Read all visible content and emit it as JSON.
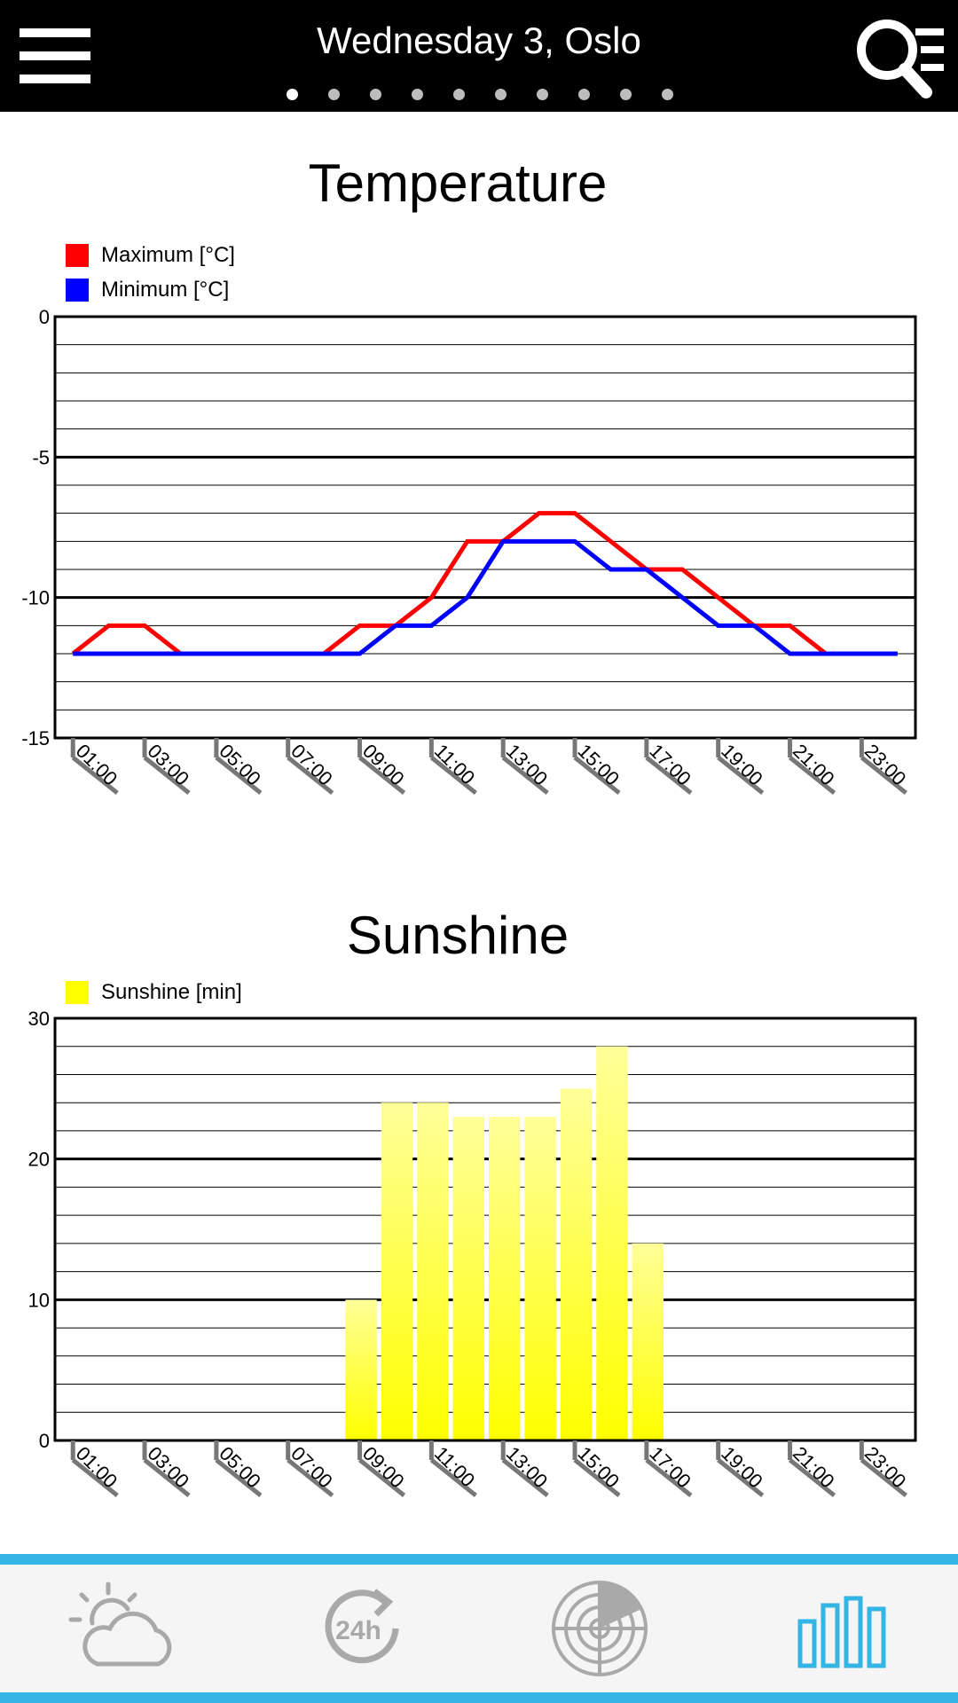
{
  "header": {
    "title": "Wednesday 3, Oslo",
    "page_count": 10,
    "active_page": 0
  },
  "charts": {
    "temperature": {
      "title": "Temperature",
      "legend": [
        {
          "label": "Maximum [°C]",
          "color": "#ff0000"
        },
        {
          "label": "Minimum [°C]",
          "color": "#0000ff"
        }
      ]
    },
    "sunshine": {
      "title": "Sunshine",
      "legend": [
        {
          "label": "Sunshine [min]",
          "color": "#ffff00"
        }
      ]
    }
  },
  "chart_data": [
    {
      "type": "line",
      "title": "Temperature",
      "x": [
        "01:00",
        "02:00",
        "03:00",
        "04:00",
        "05:00",
        "06:00",
        "07:00",
        "08:00",
        "09:00",
        "10:00",
        "11:00",
        "12:00",
        "13:00",
        "14:00",
        "15:00",
        "16:00",
        "17:00",
        "18:00",
        "19:00",
        "20:00",
        "21:00",
        "22:00",
        "23:00",
        "24:00"
      ],
      "x_tick_labels": [
        "01:00",
        "03:00",
        "05:00",
        "07:00",
        "09:00",
        "11:00",
        "13:00",
        "15:00",
        "17:00",
        "19:00",
        "21:00",
        "23:00"
      ],
      "series": [
        {
          "name": "Maximum [°C]",
          "color": "#ff0000",
          "values": [
            -12,
            -11,
            -11,
            -12,
            -12,
            -12,
            -12,
            -12,
            -11,
            -11,
            -10,
            -8,
            -8,
            -7,
            -7,
            -8,
            -9,
            -9,
            -10,
            -11,
            -11,
            -12,
            -12,
            -12
          ]
        },
        {
          "name": "Minimum [°C]",
          "color": "#0000ff",
          "values": [
            -12,
            -12,
            -12,
            -12,
            -12,
            -12,
            -12,
            -12,
            -12,
            -11,
            -11,
            -10,
            -8,
            -8,
            -8,
            -9,
            -9,
            -10,
            -11,
            -11,
            -12,
            -12,
            -12,
            -12
          ]
        }
      ],
      "ylim": [
        -15,
        0
      ],
      "y_ticks": [
        0,
        -5,
        -10,
        -15
      ],
      "grid": true,
      "legend_position": "top-left"
    },
    {
      "type": "bar",
      "title": "Sunshine",
      "x": [
        "01:00",
        "02:00",
        "03:00",
        "04:00",
        "05:00",
        "06:00",
        "07:00",
        "08:00",
        "09:00",
        "10:00",
        "11:00",
        "12:00",
        "13:00",
        "14:00",
        "15:00",
        "16:00",
        "17:00",
        "18:00",
        "19:00",
        "20:00",
        "21:00",
        "22:00",
        "23:00",
        "24:00"
      ],
      "x_tick_labels": [
        "01:00",
        "03:00",
        "05:00",
        "07:00",
        "09:00",
        "11:00",
        "13:00",
        "15:00",
        "17:00",
        "19:00",
        "21:00",
        "23:00"
      ],
      "series": [
        {
          "name": "Sunshine [min]",
          "color": "#ffff00",
          "values": [
            0,
            0,
            0,
            0,
            0,
            0,
            0,
            0,
            10,
            24,
            24,
            23,
            23,
            23,
            25,
            28,
            14,
            0,
            0,
            0,
            0,
            0,
            0,
            0
          ]
        }
      ],
      "ylim": [
        0,
        30
      ],
      "y_ticks": [
        30,
        20,
        10,
        0
      ],
      "grid": true,
      "legend_position": "top-left"
    }
  ],
  "bottom_nav": {
    "items": [
      {
        "icon": "weather-cloud-sun-icon",
        "active": false
      },
      {
        "icon": "24h-forecast-icon",
        "active": false
      },
      {
        "icon": "radar-icon",
        "active": false
      },
      {
        "icon": "bar-chart-icon",
        "active": true
      }
    ],
    "active_color": "#33b5e5",
    "inactive_color": "#a9a9a9"
  }
}
